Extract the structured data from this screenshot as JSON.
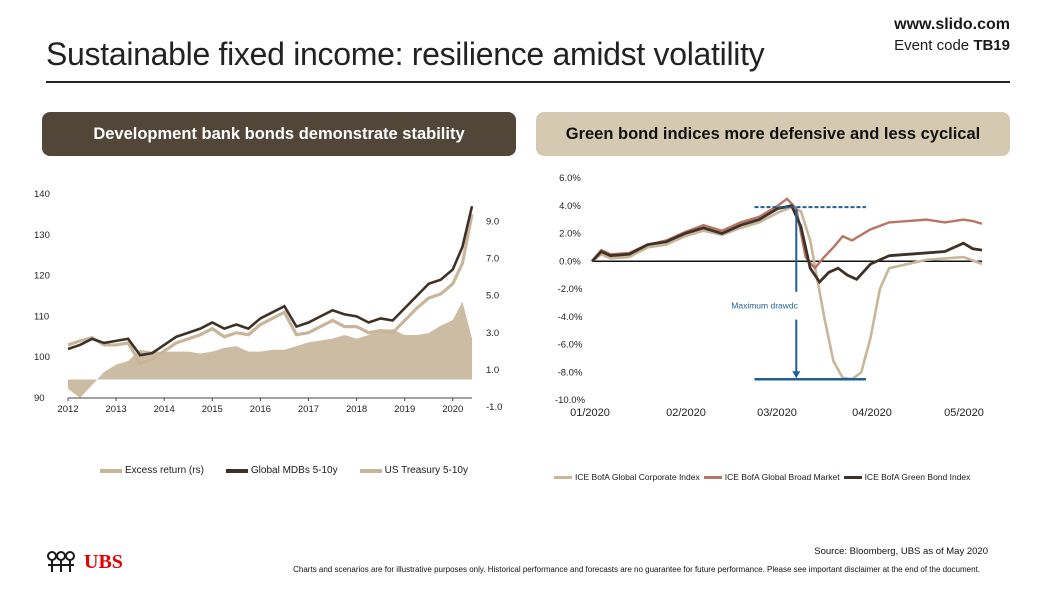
{
  "header": {
    "title": "Sustainable fixed income: resilience amidst volatility",
    "slido_url": "www.slido.com",
    "event_code_label": "Event code",
    "event_code": "TB19"
  },
  "banners": {
    "left": "Development bank bonds demonstrate stability",
    "right": "Green bond indices more defensive and less cyclical"
  },
  "colors": {
    "dark_brown": "#3e3228",
    "light_beige": "#c8b59a",
    "rose": "#b87563",
    "blue": "#1f5f99"
  },
  "chart_data": [
    {
      "type": "line",
      "title": "",
      "x_ticks": [
        "2012",
        "2013",
        "2014",
        "2015",
        "2016",
        "2017",
        "2018",
        "2019",
        "2020"
      ],
      "y_left_ticks": [
        "140",
        "130",
        "120",
        "110",
        "100",
        "90"
      ],
      "y_left_range": [
        90,
        140
      ],
      "y_right_ticks": [
        "9.0",
        "7.0",
        "5.0",
        "3.0",
        "1.0",
        "-1.0"
      ],
      "y_right_range": [
        -1,
        10
      ],
      "legend": [
        "Excess return (rs)",
        "Global MDBs 5-10y",
        "US Treasury 5-10y"
      ],
      "series": [
        {
          "name": "Global MDBs 5-10y",
          "axis": "left",
          "x": [
            2012.0,
            2012.25,
            2012.5,
            2012.75,
            2013.0,
            2013.25,
            2013.5,
            2013.75,
            2014.0,
            2014.25,
            2014.5,
            2014.75,
            2015.0,
            2015.25,
            2015.5,
            2015.75,
            2016.0,
            2016.25,
            2016.5,
            2016.75,
            2017.0,
            2017.25,
            2017.5,
            2017.75,
            2018.0,
            2018.25,
            2018.5,
            2018.75,
            2019.0,
            2019.25,
            2019.5,
            2019.75,
            2020.0,
            2020.2,
            2020.4
          ],
          "values": [
            102,
            103,
            104.5,
            103.5,
            104,
            104.5,
            100.5,
            101,
            103,
            105,
            106,
            107,
            108.5,
            107,
            108,
            107,
            109.5,
            111,
            112.5,
            107.5,
            108.5,
            110,
            111.5,
            110.5,
            110,
            108.5,
            109.5,
            109,
            112,
            115,
            118,
            119,
            121.5,
            127,
            137
          ]
        },
        {
          "name": "US Treasury 5-10y",
          "axis": "left",
          "x": [
            2012.0,
            2012.25,
            2012.5,
            2012.75,
            2013.0,
            2013.25,
            2013.5,
            2013.75,
            2014.0,
            2014.25,
            2014.5,
            2014.75,
            2015.0,
            2015.25,
            2015.5,
            2015.75,
            2016.0,
            2016.25,
            2016.5,
            2016.75,
            2017.0,
            2017.25,
            2017.5,
            2017.75,
            2018.0,
            2018.25,
            2018.5,
            2018.75,
            2019.0,
            2019.25,
            2019.5,
            2019.75,
            2020.0,
            2020.2,
            2020.4
          ],
          "values": [
            103,
            104,
            104.8,
            103,
            103,
            103.5,
            98.5,
            99.5,
            101.5,
            103.5,
            104.5,
            105.5,
            107,
            105,
            106,
            105.5,
            108,
            109.5,
            111,
            105.5,
            106,
            107.5,
            109,
            107.5,
            107.5,
            106,
            106.5,
            106,
            109,
            112,
            114.5,
            115.5,
            118,
            123,
            135
          ]
        },
        {
          "name": "Excess return (rs)",
          "axis": "right",
          "kind": "area",
          "x": [
            2012.0,
            2012.25,
            2012.5,
            2012.75,
            2013.0,
            2013.25,
            2013.5,
            2013.75,
            2014.0,
            2014.25,
            2014.5,
            2014.75,
            2015.0,
            2015.25,
            2015.5,
            2015.75,
            2016.0,
            2016.25,
            2016.5,
            2016.75,
            2017.0,
            2017.25,
            2017.5,
            2017.75,
            2018.0,
            2018.25,
            2018.5,
            2018.75,
            2019.0,
            2019.25,
            2019.5,
            2019.75,
            2020.0,
            2020.2,
            2020.4
          ],
          "values": [
            -0.5,
            -1.0,
            -0.3,
            0.4,
            0.8,
            1.0,
            1.6,
            1.5,
            1.5,
            1.5,
            1.5,
            1.4,
            1.5,
            1.7,
            1.8,
            1.5,
            1.5,
            1.6,
            1.6,
            1.8,
            2.0,
            2.1,
            2.2,
            2.4,
            2.2,
            2.4,
            2.7,
            2.7,
            2.4,
            2.4,
            2.5,
            2.9,
            3.2,
            4.2,
            2.2
          ]
        }
      ]
    },
    {
      "type": "line",
      "title": "",
      "x_ticks": [
        "01/2020",
        "02/2020",
        "03/2020",
        "04/2020",
        "05/2020"
      ],
      "x_range": [
        0,
        4.2
      ],
      "y_ticks": [
        "6.0%",
        "4.0%",
        "2.0%",
        "0.0%",
        "-2.0%",
        "-4.0%",
        "-6.0%",
        "-8.0%",
        "-10.0%"
      ],
      "y_range": [
        -10,
        6
      ],
      "legend": [
        "ICE BofA Global Corporate Index",
        "ICE BofA Global Broad Market",
        "ICE BofA Green Bond Index"
      ],
      "annotation": "Maximum drawdc",
      "series": [
        {
          "name": "ICE BofA Global Corporate Index",
          "x": [
            0,
            0.1,
            0.2,
            0.4,
            0.6,
            0.8,
            1.0,
            1.2,
            1.4,
            1.6,
            1.8,
            2.0,
            2.15,
            2.25,
            2.35,
            2.5,
            2.6,
            2.7,
            2.8,
            2.9,
            3.0,
            3.1,
            3.2,
            3.4,
            3.6,
            3.8,
            4.0,
            4.2
          ],
          "values": [
            0,
            0.5,
            0.2,
            0.3,
            1.0,
            1.2,
            1.8,
            2.2,
            1.9,
            2.4,
            2.8,
            3.5,
            3.9,
            3.6,
            1.5,
            -4.0,
            -7.2,
            -8.4,
            -8.5,
            -8.0,
            -5.5,
            -2.0,
            -0.5,
            -0.2,
            0.1,
            0.2,
            0.3,
            -0.2
          ]
        },
        {
          "name": "ICE BofA Global Broad Market",
          "x": [
            0,
            0.1,
            0.2,
            0.4,
            0.6,
            0.8,
            1.0,
            1.2,
            1.4,
            1.6,
            1.8,
            2.0,
            2.1,
            2.2,
            2.3,
            2.4,
            2.5,
            2.6,
            2.7,
            2.8,
            3.0,
            3.2,
            3.4,
            3.6,
            3.8,
            4.0,
            4.1,
            4.2
          ],
          "values": [
            0,
            0.8,
            0.5,
            0.6,
            1.2,
            1.5,
            2.1,
            2.6,
            2.2,
            2.8,
            3.2,
            4.0,
            4.5,
            3.8,
            0.3,
            -0.5,
            0.3,
            1.0,
            1.8,
            1.5,
            2.3,
            2.8,
            2.9,
            3.0,
            2.8,
            3.0,
            2.9,
            2.7
          ]
        },
        {
          "name": "ICE BofA Green Bond Index",
          "x": [
            0,
            0.1,
            0.2,
            0.4,
            0.6,
            0.8,
            1.0,
            1.2,
            1.4,
            1.6,
            1.8,
            2.0,
            2.15,
            2.25,
            2.35,
            2.45,
            2.55,
            2.65,
            2.75,
            2.85,
            3.0,
            3.2,
            3.4,
            3.6,
            3.8,
            4.0,
            4.1,
            4.2
          ],
          "values": [
            0,
            0.7,
            0.4,
            0.5,
            1.2,
            1.4,
            2.0,
            2.4,
            2.0,
            2.6,
            3.0,
            3.8,
            4.0,
            2.5,
            -0.5,
            -1.5,
            -0.8,
            -0.5,
            -1.0,
            -1.3,
            -0.2,
            0.4,
            0.5,
            0.6,
            0.7,
            1.3,
            0.9,
            0.8
          ]
        }
      ]
    }
  ],
  "footer": {
    "logo_text": "UBS",
    "source": "Source: Bloomberg, UBS as of May 2020",
    "disclaimer": "Charts and scenarios are for illustrative purposes only. Historical performance and forecasts are no guarantee for future performance. Please see important disclaimer at the end of the document."
  }
}
